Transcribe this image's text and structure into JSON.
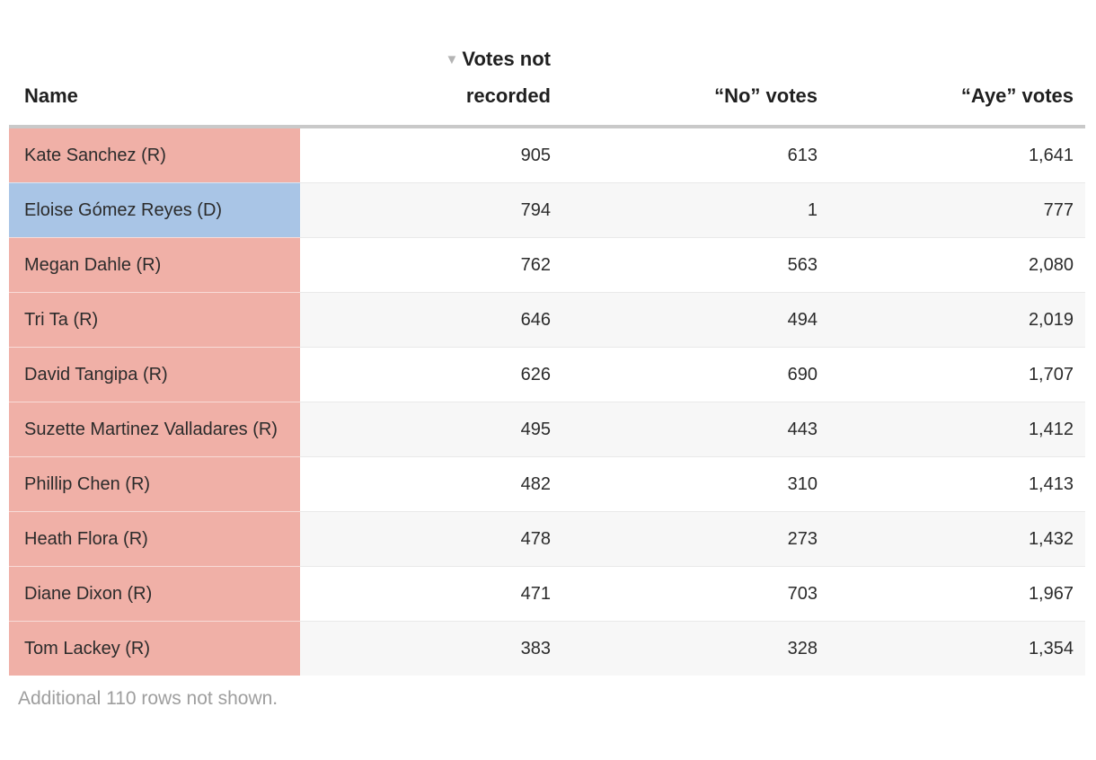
{
  "table": {
    "sort_icon": "▼",
    "columns": [
      {
        "label": "Name"
      },
      {
        "label": "Votes not recorded",
        "sorted": "desc"
      },
      {
        "label": "“No” votes"
      },
      {
        "label": "“Aye” votes"
      }
    ],
    "rows": [
      {
        "name": "Kate Sanchez (R)",
        "party": "R",
        "vnr": "905",
        "no": "613",
        "aye": "1,641"
      },
      {
        "name": "Eloise Gómez Reyes (D)",
        "party": "D",
        "vnr": "794",
        "no": "1",
        "aye": "777"
      },
      {
        "name": "Megan Dahle (R)",
        "party": "R",
        "vnr": "762",
        "no": "563",
        "aye": "2,080"
      },
      {
        "name": "Tri Ta (R)",
        "party": "R",
        "vnr": "646",
        "no": "494",
        "aye": "2,019"
      },
      {
        "name": "David Tangipa (R)",
        "party": "R",
        "vnr": "626",
        "no": "690",
        "aye": "1,707"
      },
      {
        "name": "Suzette Martinez Valladares (R)",
        "party": "R",
        "vnr": "495",
        "no": "443",
        "aye": "1,412"
      },
      {
        "name": "Phillip Chen (R)",
        "party": "R",
        "vnr": "482",
        "no": "310",
        "aye": "1,413"
      },
      {
        "name": "Heath Flora (R)",
        "party": "R",
        "vnr": "478",
        "no": "273",
        "aye": "1,432"
      },
      {
        "name": "Diane Dixon (R)",
        "party": "R",
        "vnr": "471",
        "no": "703",
        "aye": "1,967"
      },
      {
        "name": "Tom Lackey (R)",
        "party": "R",
        "vnr": "383",
        "no": "328",
        "aye": "1,354"
      }
    ],
    "footnote": "Additional 110 rows not shown."
  },
  "colors": {
    "republican_cell": "#f0b0a7",
    "democrat_cell": "#a9c5e6",
    "row_stripe": "#f7f7f7",
    "header_rule": "#c9c9c9",
    "sort_icon": "#b4b4b4",
    "text": "#2b2b2b",
    "footnote_text": "#9e9e9e"
  }
}
